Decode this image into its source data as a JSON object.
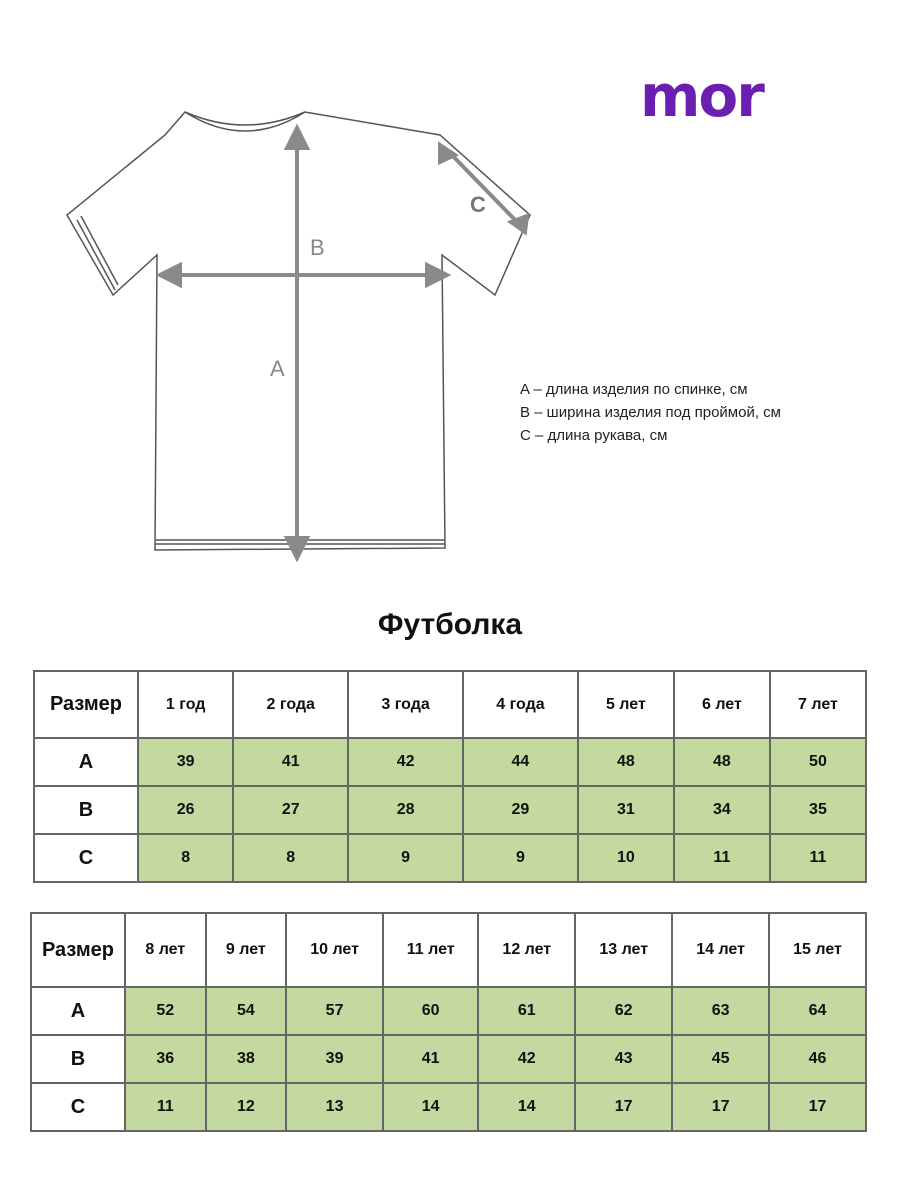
{
  "logo": {
    "text": "mor",
    "color": "#6a1fb0"
  },
  "diagram": {
    "labels": {
      "a": "A",
      "b": "B",
      "c": "C"
    }
  },
  "legend": [
    "A – длина изделия по спинке, см",
    "B – ширина изделия под проймой, см",
    "C – длина рукава, см"
  ],
  "title": "Футболка",
  "colors": {
    "cell_fill": "#c4d9a0",
    "arrow": "#8a8a8a"
  },
  "table1": {
    "corner": "Размер",
    "headers": [
      "1 год",
      "2 года",
      "3 года",
      "4 года",
      "5 лет",
      "6 лет",
      "7 лет"
    ],
    "rows": [
      {
        "label": "A",
        "values": [
          "39",
          "41",
          "42",
          "44",
          "48",
          "48",
          "50"
        ]
      },
      {
        "label": "B",
        "values": [
          "26",
          "27",
          "28",
          "29",
          "31",
          "34",
          "35"
        ]
      },
      {
        "label": "C",
        "values": [
          "8",
          "8",
          "9",
          "9",
          "10",
          "11",
          "11"
        ]
      }
    ]
  },
  "table2": {
    "corner": "Размер",
    "headers": [
      "8 лет",
      "9 лет",
      "10 лет",
      "11 лет",
      "12 лет",
      "13 лет",
      "14 лет",
      "15 лет"
    ],
    "rows": [
      {
        "label": "A",
        "values": [
          "52",
          "54",
          "57",
          "60",
          "61",
          "62",
          "63",
          "64"
        ]
      },
      {
        "label": "B",
        "values": [
          "36",
          "38",
          "39",
          "41",
          "42",
          "43",
          "45",
          "46"
        ]
      },
      {
        "label": "C",
        "values": [
          "11",
          "12",
          "13",
          "14",
          "14",
          "17",
          "17",
          "17"
        ]
      }
    ]
  }
}
